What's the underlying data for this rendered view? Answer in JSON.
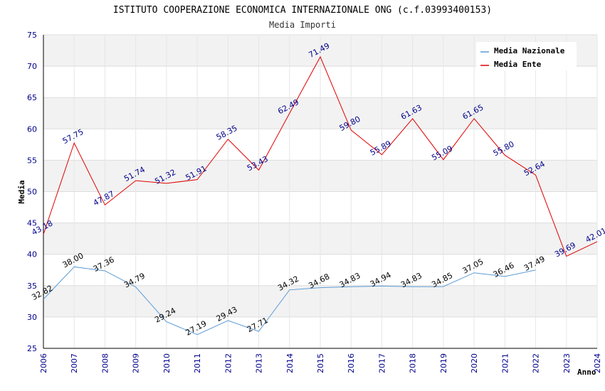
{
  "chart_data": {
    "type": "line",
    "title": "ISTITUTO COOPERAZIONE ECONOMICA INTERNAZIONALE ONG (c.f.03993400153)",
    "subtitle": "Media Importi",
    "xlabel": "Anno",
    "ylabel": "Media",
    "ylim": [
      25,
      75
    ],
    "yticks": [
      25,
      30,
      35,
      40,
      45,
      50,
      55,
      60,
      65,
      70,
      75
    ],
    "grid": true,
    "legend_position": "top-right",
    "categories": [
      "2006",
      "2007",
      "2008",
      "2009",
      "2010",
      "2011",
      "2012",
      "2013",
      "2014",
      "2015",
      "2016",
      "2017",
      "2018",
      "2019",
      "2020",
      "2021",
      "2022",
      "2023",
      "2024"
    ],
    "series": [
      {
        "name": "Media Nazionale",
        "color": "#5b9bd5",
        "label_color": "#000000",
        "values": [
          32.82,
          38.0,
          37.36,
          34.79,
          29.24,
          27.19,
          29.43,
          27.71,
          34.32,
          34.68,
          34.83,
          34.94,
          34.83,
          34.85,
          37.05,
          36.46,
          37.49,
          null,
          null
        ],
        "labels": [
          "32.82",
          "38.00",
          "37.36",
          "34.79",
          "29.24",
          "27.19",
          "29.43",
          "27.71",
          "34.32",
          "34.68",
          "34.83",
          "34.94",
          "34.83",
          "34.85",
          "37.05",
          "36.46",
          "37.49",
          "",
          ""
        ]
      },
      {
        "name": "Media Ente",
        "color": "#e00000",
        "label_color": "#00008b",
        "values": [
          43.18,
          57.75,
          47.87,
          51.74,
          51.32,
          51.91,
          58.35,
          53.43,
          62.49,
          71.49,
          59.8,
          55.89,
          61.63,
          55.09,
          61.65,
          55.8,
          52.64,
          39.69,
          42.01
        ],
        "labels": [
          "43.18",
          "57.75",
          "47.87",
          "51.74",
          "51.32",
          "51.91",
          "58.35",
          "53.43",
          "62.49",
          "71.49",
          "59.80",
          "55.89",
          "61.63",
          "55.09",
          "61.65",
          "55.80",
          "52.64",
          "39.69",
          "42.01"
        ]
      }
    ]
  }
}
